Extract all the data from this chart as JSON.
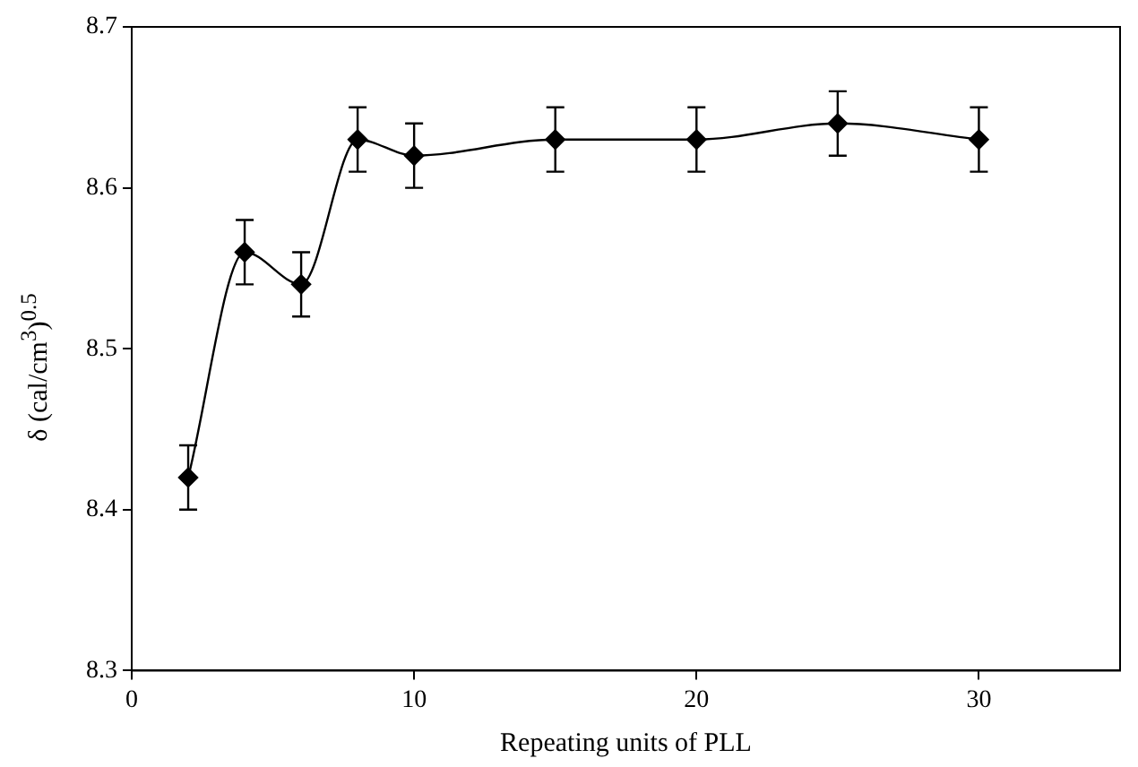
{
  "chart_data": {
    "type": "line",
    "xlabel": "Repeating units of PLL",
    "ylabel": "δ (cal/cm$^{3}$)$^{0.5}$",
    "x": [
      2,
      4,
      6,
      8,
      10,
      15,
      20,
      25,
      30
    ],
    "series": [
      {
        "color": "#000000",
        "values": [
          8.42,
          8.56,
          8.54,
          8.63,
          8.62,
          8.63,
          8.63,
          8.64,
          8.63
        ],
        "errors": [
          0.02,
          0.02,
          0.02,
          0.02,
          0.02,
          0.02,
          0.02,
          0.02,
          0.02
        ]
      }
    ],
    "xlim": [
      0,
      35
    ],
    "xticks": [
      0,
      10,
      20,
      30
    ],
    "ylim": [
      8.3,
      8.7
    ],
    "yticks": [
      8.3,
      8.4,
      8.5,
      8.6,
      8.7
    ],
    "grid": false,
    "legend": false,
    "marker": "diamond",
    "line_style": "solid"
  }
}
